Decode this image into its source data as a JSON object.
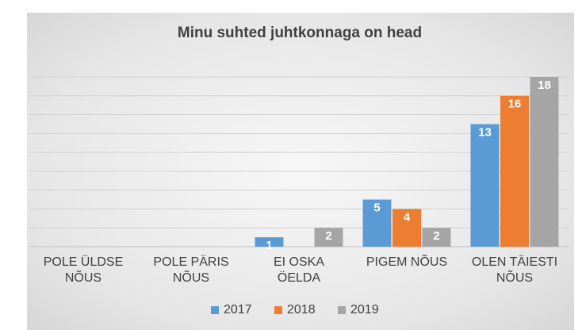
{
  "chart_data": {
    "type": "bar",
    "title": "Minu suhted juhtkonnaga on head",
    "categories": [
      "POLE ÜLDSE NÕUS",
      "POLE PÄRIS NÕUS",
      "EI OSKA ÖELDA",
      "PIGEM NÕUS",
      "OLEN TÄIESTI NÕUS"
    ],
    "series": [
      {
        "name": "2017",
        "color": "#5b9bd5",
        "values": [
          null,
          null,
          1,
          5,
          13
        ]
      },
      {
        "name": "2018",
        "color": "#ed7d31",
        "values": [
          null,
          null,
          null,
          4,
          16
        ]
      },
      {
        "name": "2019",
        "color": "#a5a5a5",
        "values": [
          null,
          null,
          2,
          2,
          18
        ]
      }
    ],
    "ylim": [
      0,
      18
    ],
    "yticks": [
      0,
      2,
      4,
      6,
      8,
      10,
      12,
      14,
      16,
      18
    ],
    "grid": true,
    "legend": "bottom"
  }
}
